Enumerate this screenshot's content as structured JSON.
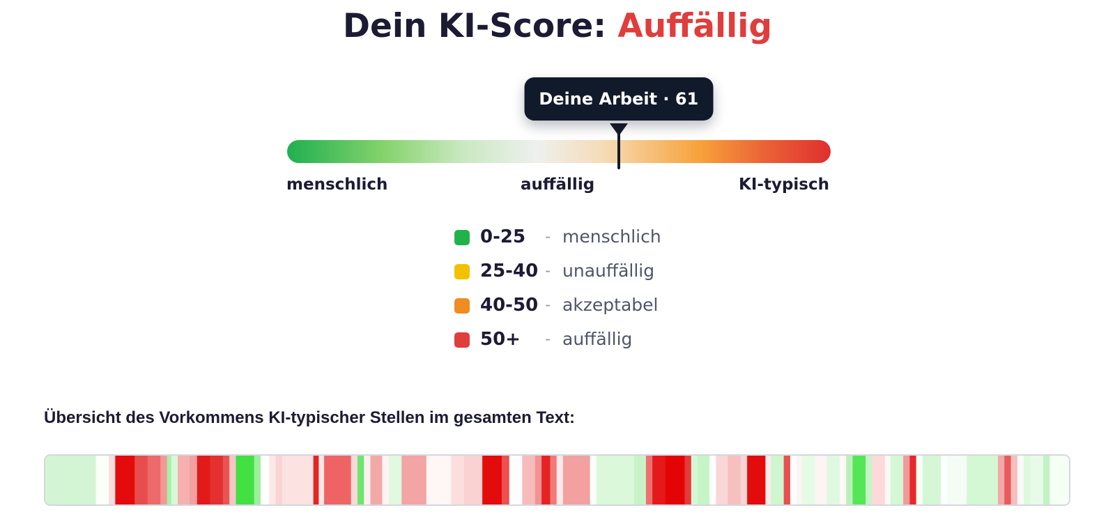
{
  "header": {
    "title_prefix": "Dein KI-Score: ",
    "title_result": "Auffällig",
    "result_color": "#e03d3d"
  },
  "gauge": {
    "marker_label": "Deine Arbeit · 61",
    "score": 61,
    "scale_min": 0,
    "scale_max": 100,
    "label_left": "menschlich",
    "label_middle": "auffällig",
    "label_right": "KI-typisch"
  },
  "legend": {
    "items": [
      {
        "range": "0-25",
        "separator": "-",
        "label": "menschlich",
        "color": "#22b24c"
      },
      {
        "range": "25-40",
        "separator": "-",
        "label": "unauffällig",
        "color": "#f2c200"
      },
      {
        "range": "40-50",
        "separator": "-",
        "label": "akzeptabel",
        "color": "#ef8c22"
      },
      {
        "range": "50+",
        "separator": "-",
        "label": "auffällig",
        "color": "#e03d3d"
      }
    ]
  },
  "overview": {
    "title": "Übersicht des Vorkommens KI-typischer Stellen im gesamten Text:",
    "segments": [
      {
        "fraction": 0.047,
        "color": "#d4f5d4"
      },
      {
        "fraction": 0.012,
        "color": "#fafffa"
      },
      {
        "fraction": 0.006,
        "color": "#fcdcdc"
      },
      {
        "fraction": 0.018,
        "color": "#e30b0b"
      },
      {
        "fraction": 0.012,
        "color": "#e84d4d"
      },
      {
        "fraction": 0.012,
        "color": "#ec6a6a"
      },
      {
        "fraction": 0.006,
        "color": "#f29898"
      },
      {
        "fraction": 0.004,
        "color": "#a4f2a4"
      },
      {
        "fraction": 0.006,
        "color": "#d8f8d8"
      },
      {
        "fraction": 0.011,
        "color": "#f6b0b0"
      },
      {
        "fraction": 0.007,
        "color": "#f2a0a0"
      },
      {
        "fraction": 0.012,
        "color": "#e21a1a"
      },
      {
        "fraction": 0.012,
        "color": "#e53030"
      },
      {
        "fraction": 0.006,
        "color": "#ea5353"
      },
      {
        "fraction": 0.006,
        "color": "#f6c6c6"
      },
      {
        "fraction": 0.017,
        "color": "#43e043"
      },
      {
        "fraction": 0.006,
        "color": "#9cef9c"
      },
      {
        "fraction": 0.008,
        "color": "#ffffff"
      },
      {
        "fraction": 0.006,
        "color": "#fde8e8"
      },
      {
        "fraction": 0.006,
        "color": "#f9d4d4"
      },
      {
        "fraction": 0.029,
        "color": "#fde2e2"
      },
      {
        "fraction": 0.005,
        "color": "#e42424"
      },
      {
        "fraction": 0.005,
        "color": "#fce8e8"
      },
      {
        "fraction": 0.025,
        "color": "#ee6464"
      },
      {
        "fraction": 0.006,
        "color": "#fad8d8"
      },
      {
        "fraction": 0.006,
        "color": "#6de66d"
      },
      {
        "fraction": 0.006,
        "color": "#fdf0f0"
      },
      {
        "fraction": 0.011,
        "color": "#f3a8a8"
      },
      {
        "fraction": 0.006,
        "color": "#fff4f4"
      },
      {
        "fraction": 0.012,
        "color": "#e0f9e0"
      },
      {
        "fraction": 0.023,
        "color": "#f3a4a4"
      },
      {
        "fraction": 0.023,
        "color": "#fff6f6"
      },
      {
        "fraction": 0.012,
        "color": "#fcdede"
      },
      {
        "fraction": 0.017,
        "color": "#fbd2d2"
      },
      {
        "fraction": 0.018,
        "color": "#e30b0b"
      },
      {
        "fraction": 0.007,
        "color": "#ec5050"
      },
      {
        "fraction": 0.012,
        "color": "#fdfdfd"
      },
      {
        "fraction": 0.012,
        "color": "#f6bcbc"
      },
      {
        "fraction": 0.006,
        "color": "#f29292"
      },
      {
        "fraction": 0.008,
        "color": "#e52323"
      },
      {
        "fraction": 0.006,
        "color": "#ef7a7a"
      },
      {
        "fraction": 0.006,
        "color": "#fde8e8"
      },
      {
        "fraction": 0.025,
        "color": "#f2a0a0"
      },
      {
        "fraction": 0.006,
        "color": "#fafffa"
      },
      {
        "fraction": 0.035,
        "color": "#dbf8db"
      },
      {
        "fraction": 0.011,
        "color": "#c8f3c8"
      },
      {
        "fraction": 0.006,
        "color": "#ef6f6f"
      },
      {
        "fraction": 0.012,
        "color": "#e41a1a"
      },
      {
        "fraction": 0.018,
        "color": "#e30505"
      },
      {
        "fraction": 0.006,
        "color": "#e63a3a"
      },
      {
        "fraction": 0.006,
        "color": "#d6f7d6"
      },
      {
        "fraction": 0.011,
        "color": "#c7f4c7"
      },
      {
        "fraction": 0.006,
        "color": "#fefefe"
      },
      {
        "fraction": 0.011,
        "color": "#fbd6d6"
      },
      {
        "fraction": 0.012,
        "color": "#f7c0c0"
      },
      {
        "fraction": 0.006,
        "color": "#fad4d4"
      },
      {
        "fraction": 0.017,
        "color": "#e30c0c"
      },
      {
        "fraction": 0.005,
        "color": "#fcebeb"
      },
      {
        "fraction": 0.012,
        "color": "#d0f6d0"
      },
      {
        "fraction": 0.006,
        "color": "#e75050"
      },
      {
        "fraction": 0.006,
        "color": "#fcffff"
      },
      {
        "fraction": 0.005,
        "color": "#fff4f4"
      },
      {
        "fraction": 0.012,
        "color": "#e5fbe5"
      },
      {
        "fraction": 0.011,
        "color": "#fdf4f4"
      },
      {
        "fraction": 0.012,
        "color": "#dff9df"
      },
      {
        "fraction": 0.006,
        "color": "#fff6f6"
      },
      {
        "fraction": 0.006,
        "color": "#b8f1b8"
      },
      {
        "fraction": 0.012,
        "color": "#55e655"
      },
      {
        "fraction": 0.006,
        "color": "#c6f4c6"
      },
      {
        "fraction": 0.012,
        "color": "#fdd9d9"
      },
      {
        "fraction": 0.005,
        "color": "#fcf8f8"
      },
      {
        "fraction": 0.012,
        "color": "#d4f7d4"
      },
      {
        "fraction": 0.006,
        "color": "#f29a9a"
      },
      {
        "fraction": 0.006,
        "color": "#e62a2a"
      },
      {
        "fraction": 0.006,
        "color": "#f6fff6"
      },
      {
        "fraction": 0.017,
        "color": "#d5f7d5"
      },
      {
        "fraction": 0.006,
        "color": "#fcffff"
      },
      {
        "fraction": 0.018,
        "color": "#f5fcf5"
      },
      {
        "fraction": 0.029,
        "color": "#d4f7d4"
      },
      {
        "fraction": 0.006,
        "color": "#f5a6a6"
      },
      {
        "fraction": 0.006,
        "color": "#e65b5b"
      },
      {
        "fraction": 0.006,
        "color": "#f7bebe"
      },
      {
        "fraction": 0.006,
        "color": "#fbf8f8"
      },
      {
        "fraction": 0.006,
        "color": "#dcf9dc"
      },
      {
        "fraction": 0.012,
        "color": "#e8fbe8"
      },
      {
        "fraction": 0.006,
        "color": "#c2f3c2"
      },
      {
        "fraction": 0.018,
        "color": "#f5fff5"
      }
    ]
  }
}
